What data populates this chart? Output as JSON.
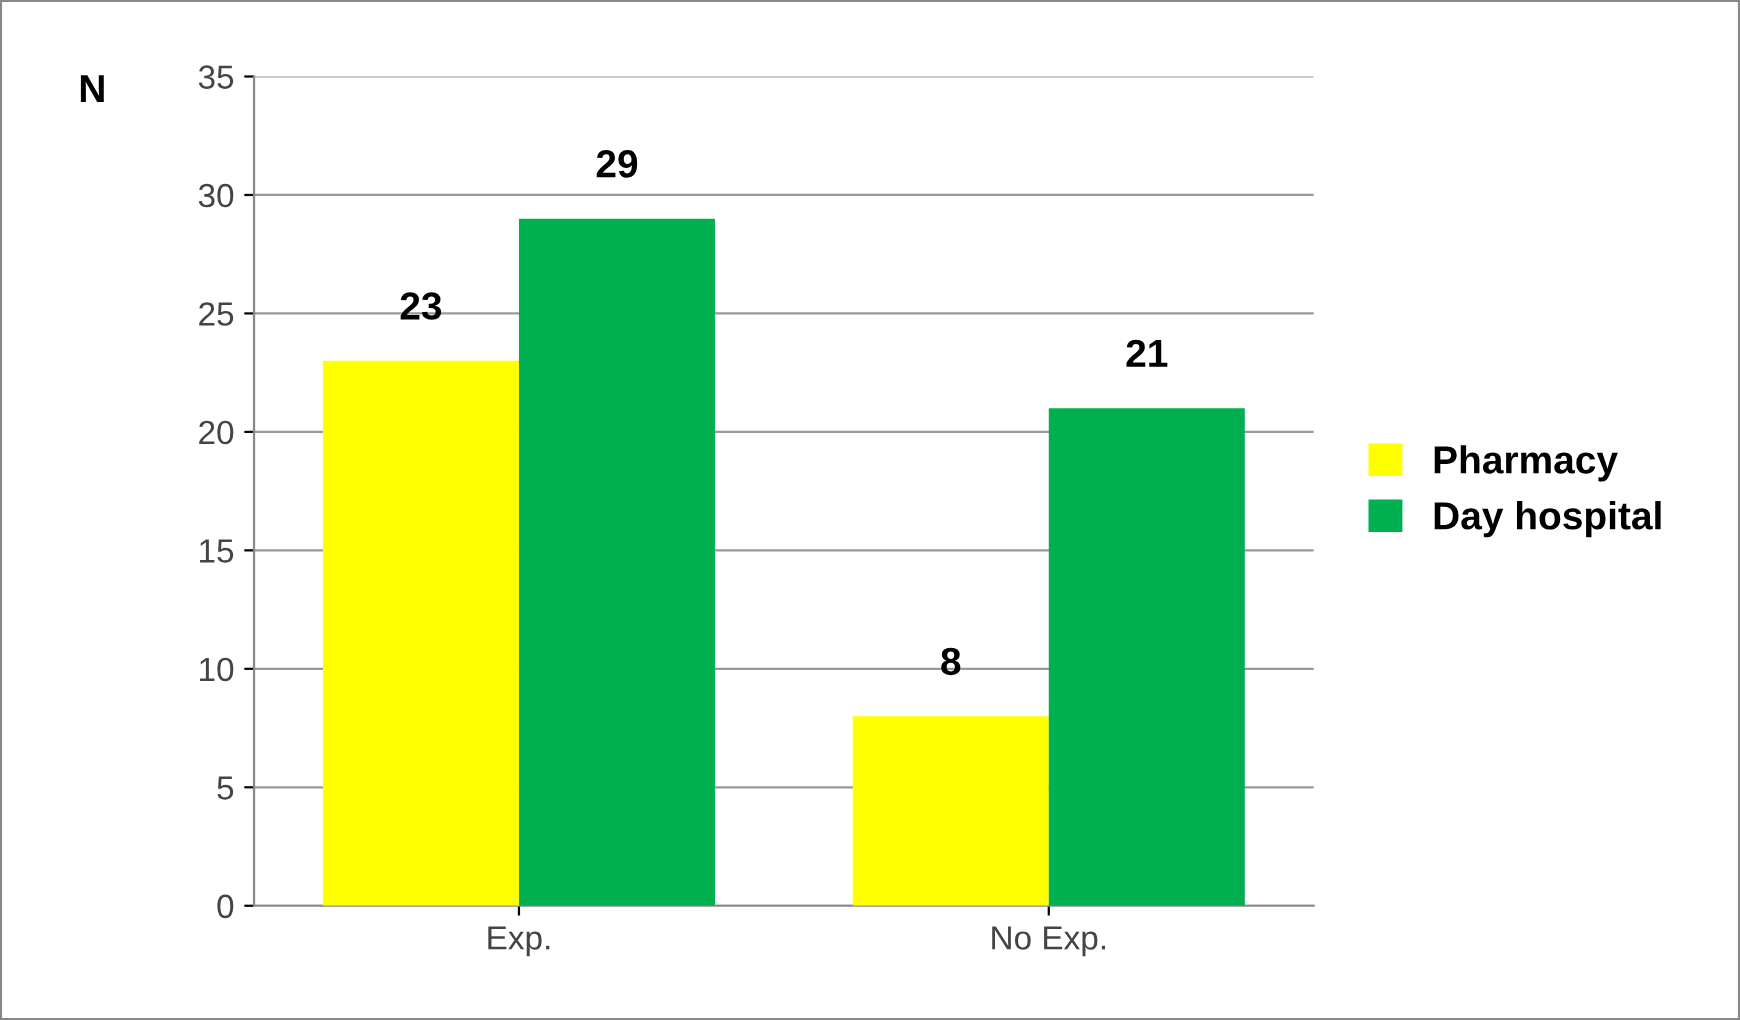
{
  "chart_data": {
    "type": "bar",
    "ylabel": "N",
    "categories": [
      "Exp.",
      "No Exp."
    ],
    "series": [
      {
        "name": "Pharmacy",
        "color": "#ffff00",
        "values": [
          23,
          8
        ]
      },
      {
        "name": "Day hospital",
        "color": "#00b050",
        "values": [
          29,
          21
        ]
      }
    ],
    "ylim": [
      0,
      35
    ],
    "yticks": [
      0,
      5,
      10,
      15,
      20,
      25,
      30,
      35
    ],
    "grid": "y",
    "legend": "right",
    "data_labels": true
  }
}
